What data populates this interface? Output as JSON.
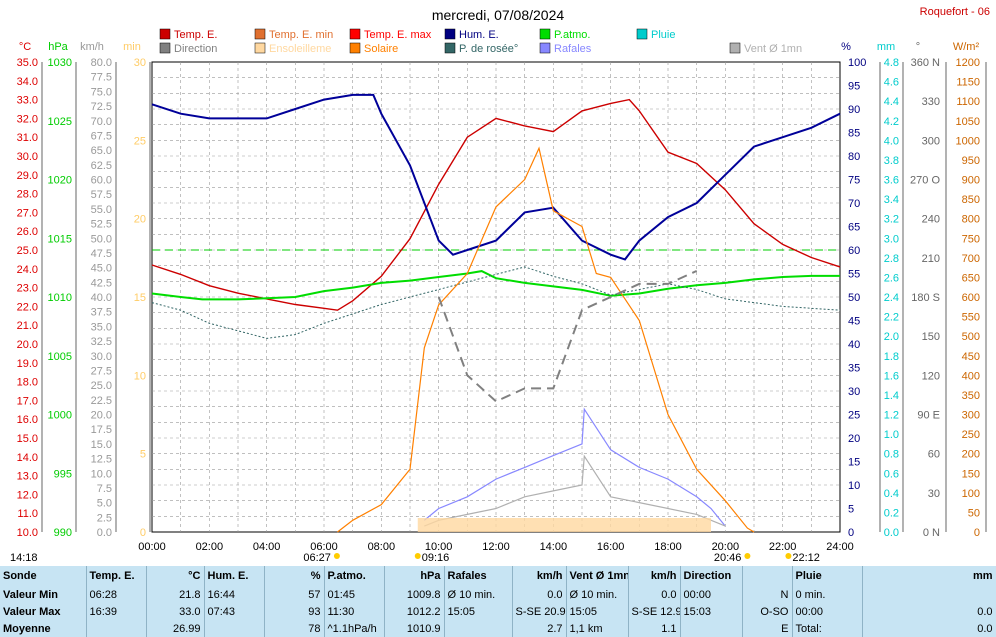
{
  "title": "mercredi, 07/08/2024",
  "station": "Roquefort - 06",
  "legend": [
    {
      "label": "Temp. E.",
      "color": "#cc0000"
    },
    {
      "label": "Direction",
      "color": "#808080"
    },
    {
      "label": "Temp. E. min",
      "color": "#e07030"
    },
    {
      "label": "Ensoleilleme",
      "color": "#ffd8a0"
    },
    {
      "label": "Temp. E. max",
      "color": "#ff0000"
    },
    {
      "label": "Solaire",
      "color": "#ff8000"
    },
    {
      "label": "Hum. E.",
      "color": "#000080"
    },
    {
      "label": "P. de rosée°",
      "color": "#336666"
    },
    {
      "label": "P.atmo.",
      "color": "#00dd00"
    },
    {
      "label": "Rafales",
      "color": "#8888ff"
    },
    {
      "label": "Pluie",
      "color": "#00cccc"
    },
    {
      "label": "Vent Ø 1mn",
      "color": "#b0b0b0"
    }
  ],
  "axis_units": [
    "°C",
    "hPa",
    "km/h",
    "min",
    "%",
    "mm",
    "°",
    "W/m²"
  ],
  "axis_colors": {
    "temp": "#dd0000",
    "hpa": "#00cc00",
    "kmh": "#999999",
    "min": "#ffcc66",
    "pct": "#000080",
    "mm": "#00cccc",
    "deg": "#666666",
    "wm2": "#cc6600"
  },
  "chart_data": {
    "type": "line",
    "x_range": [
      "00:00",
      "24:00"
    ],
    "x_ticks": [
      "00:00",
      "02:00",
      "04:00",
      "06:00",
      "08:00",
      "10:00",
      "12:00",
      "14:00",
      "16:00",
      "18:00",
      "20:00",
      "22:00",
      "24:00"
    ],
    "axes": {
      "temp_c": {
        "ticks": [
          "35.0",
          "34.0",
          "33.0",
          "32.0",
          "31.0",
          "30.0",
          "29.0",
          "28.0",
          "27.0",
          "26.0",
          "25.0",
          "24.0",
          "23.0",
          "22.0",
          "21.0",
          "20.0",
          "19.0",
          "18.0",
          "17.0",
          "16.0",
          "15.0",
          "14.0",
          "13.0",
          "12.0",
          "11.0",
          "10.0"
        ],
        "range": [
          10,
          35
        ]
      },
      "hpa": {
        "ticks": [
          "1030",
          "1025",
          "1020",
          "1015",
          "1010",
          "1005",
          "1000",
          "995",
          "990"
        ],
        "range": [
          990,
          1030
        ]
      },
      "kmh": {
        "ticks": [
          "80.0",
          "77.5",
          "75.0",
          "72.5",
          "70.0",
          "67.5",
          "65.0",
          "62.5",
          "60.0",
          "57.5",
          "55.0",
          "52.5",
          "50.0",
          "47.5",
          "45.0",
          "42.5",
          "40.0",
          "37.5",
          "35.0",
          "32.5",
          "30.0",
          "27.5",
          "25.0",
          "22.5",
          "20.0",
          "17.5",
          "15.0",
          "12.5",
          "10.0",
          "7.5",
          "5.0",
          "2.5",
          "0.0"
        ],
        "range": [
          0,
          80
        ]
      },
      "min": {
        "ticks": [
          "30",
          "25",
          "20",
          "15",
          "10",
          "5",
          "0"
        ],
        "range": [
          0,
          30
        ]
      },
      "pct": {
        "ticks": [
          "100",
          "95",
          "90",
          "85",
          "80",
          "75",
          "70",
          "65",
          "60",
          "55",
          "50",
          "45",
          "40",
          "35",
          "30",
          "25",
          "20",
          "15",
          "10",
          "5",
          "0"
        ],
        "range": [
          0,
          100
        ]
      },
      "mm": {
        "ticks": [
          "4.8",
          "4.6",
          "4.4",
          "4.2",
          "4.0",
          "3.8",
          "3.6",
          "3.4",
          "3.2",
          "3.0",
          "2.8",
          "2.6",
          "2.4",
          "2.2",
          "2.0",
          "1.8",
          "1.6",
          "1.4",
          "1.2",
          "1.0",
          "0.8",
          "0.6",
          "0.4",
          "0.2",
          "0.0"
        ],
        "range": [
          0,
          5
        ]
      },
      "deg": {
        "ticks": [
          "360 N",
          "330",
          "300",
          "270 O",
          "240",
          "210",
          "180 S",
          "150",
          "120",
          "90 E",
          "60",
          "30",
          "0 N"
        ],
        "range": [
          0,
          360
        ]
      },
      "wm2": {
        "ticks": [
          "1200",
          "1150",
          "1100",
          "1050",
          "1000",
          "950",
          "900",
          "850",
          "800",
          "750",
          "700",
          "650",
          "600",
          "550",
          "500",
          "450",
          "400",
          "350",
          "300",
          "250",
          "200",
          "150",
          "100",
          "50",
          "0"
        ],
        "range": [
          0,
          1200
        ]
      }
    },
    "series": [
      {
        "name": "Temp. E.",
        "unit": "°C",
        "points": [
          [
            0,
            24.2
          ],
          [
            1,
            23.7
          ],
          [
            2,
            23.1
          ],
          [
            3,
            22.7
          ],
          [
            4,
            22.4
          ],
          [
            5,
            22.1
          ],
          [
            6,
            21.9
          ],
          [
            6.47,
            21.8
          ],
          [
            7,
            22.3
          ],
          [
            8,
            23.6
          ],
          [
            9,
            25.6
          ],
          [
            10,
            28.5
          ],
          [
            11,
            31.0
          ],
          [
            12,
            32.0
          ],
          [
            13,
            31.6
          ],
          [
            14,
            31.3
          ],
          [
            15,
            32.4
          ],
          [
            16,
            32.8
          ],
          [
            16.65,
            33.0
          ],
          [
            17,
            32.4
          ],
          [
            18,
            30.2
          ],
          [
            19,
            29.6
          ],
          [
            20,
            28.2
          ],
          [
            21,
            26.4
          ],
          [
            22,
            25.3
          ],
          [
            23,
            24.6
          ],
          [
            24,
            24.1
          ]
        ]
      },
      {
        "name": "Hum. E.",
        "unit": "%",
        "points": [
          [
            0,
            91
          ],
          [
            1,
            89
          ],
          [
            2,
            88
          ],
          [
            3,
            88
          ],
          [
            4,
            88
          ],
          [
            5,
            90
          ],
          [
            6,
            92
          ],
          [
            7,
            93
          ],
          [
            7.72,
            93
          ],
          [
            8,
            89
          ],
          [
            9,
            78
          ],
          [
            10,
            62
          ],
          [
            10.5,
            59
          ],
          [
            11,
            60
          ],
          [
            12,
            62
          ],
          [
            13,
            68
          ],
          [
            14,
            69
          ],
          [
            15,
            62
          ],
          [
            16,
            59
          ],
          [
            16.5,
            58
          ],
          [
            17,
            62
          ],
          [
            18,
            67
          ],
          [
            19,
            70
          ],
          [
            20,
            76
          ],
          [
            21,
            82
          ],
          [
            22,
            84
          ],
          [
            23,
            86
          ],
          [
            24,
            89
          ]
        ]
      },
      {
        "name": "P.atmo.",
        "unit": "hPa",
        "points": [
          [
            0,
            1010.3
          ],
          [
            1,
            1010.0
          ],
          [
            1.75,
            1009.8
          ],
          [
            2,
            1009.8
          ],
          [
            3,
            1009.8
          ],
          [
            4,
            1009.9
          ],
          [
            5,
            1010.0
          ],
          [
            6,
            1010.5
          ],
          [
            7,
            1010.8
          ],
          [
            8,
            1011.2
          ],
          [
            9,
            1011.4
          ],
          [
            10,
            1011.7
          ],
          [
            11,
            1012.0
          ],
          [
            11.5,
            1012.2
          ],
          [
            12,
            1011.6
          ],
          [
            13,
            1011.2
          ],
          [
            14,
            1010.9
          ],
          [
            15,
            1010.6
          ],
          [
            16,
            1010.1
          ],
          [
            17,
            1010.3
          ],
          [
            18,
            1010.7
          ],
          [
            19,
            1011.0
          ],
          [
            20,
            1011.2
          ],
          [
            21,
            1011.5
          ],
          [
            22,
            1011.7
          ],
          [
            23,
            1011.8
          ],
          [
            24,
            1011.8
          ]
        ]
      },
      {
        "name": "P. de rosée°",
        "unit": "°C",
        "points": [
          [
            0,
            22.2
          ],
          [
            1,
            21.8
          ],
          [
            2,
            21.1
          ],
          [
            3,
            20.7
          ],
          [
            4,
            20.3
          ],
          [
            5,
            20.5
          ],
          [
            6,
            21.1
          ],
          [
            7,
            21.6
          ],
          [
            8,
            22.1
          ],
          [
            9,
            22.5
          ],
          [
            10,
            22.9
          ],
          [
            11,
            23.3
          ],
          [
            12,
            23.7
          ],
          [
            13,
            24.1
          ],
          [
            14,
            23.6
          ],
          [
            15,
            23.2
          ],
          [
            16,
            22.6
          ],
          [
            17,
            22.9
          ],
          [
            18,
            23.2
          ],
          [
            19,
            22.9
          ],
          [
            20,
            22.4
          ],
          [
            21,
            22.2
          ],
          [
            22,
            22.0
          ],
          [
            23,
            21.9
          ],
          [
            24,
            21.8
          ]
        ]
      },
      {
        "name": "Solaire",
        "unit": "W/m²",
        "points": [
          [
            6.47,
            0
          ],
          [
            7,
            30
          ],
          [
            8,
            70
          ],
          [
            9,
            160
          ],
          [
            9.5,
            470
          ],
          [
            10,
            580
          ],
          [
            11,
            660
          ],
          [
            12,
            830
          ],
          [
            13,
            900
          ],
          [
            13.5,
            980
          ],
          [
            14,
            820
          ],
          [
            15,
            780
          ],
          [
            15.5,
            660
          ],
          [
            16,
            650
          ],
          [
            17,
            540
          ],
          [
            18,
            300
          ],
          [
            19,
            160
          ],
          [
            20,
            80
          ],
          [
            20.77,
            10
          ],
          [
            21,
            0
          ]
        ]
      },
      {
        "name": "Rafales",
        "unit": "km/h",
        "points": [
          [
            9.5,
            2
          ],
          [
            10,
            4
          ],
          [
            11,
            6
          ],
          [
            12,
            9
          ],
          [
            13,
            11
          ],
          [
            14,
            13
          ],
          [
            15,
            15
          ],
          [
            15.08,
            20.9
          ],
          [
            16,
            14
          ],
          [
            17,
            11
          ],
          [
            18,
            9
          ],
          [
            19,
            6
          ],
          [
            19.5,
            4
          ],
          [
            20,
            1
          ]
        ]
      },
      {
        "name": "Vent Ø 1mn",
        "unit": "km/h",
        "points": [
          [
            9.5,
            1
          ],
          [
            10,
            2
          ],
          [
            11,
            3
          ],
          [
            12,
            4
          ],
          [
            13,
            6
          ],
          [
            14,
            7
          ],
          [
            15,
            8
          ],
          [
            15.08,
            12.9
          ],
          [
            16,
            6
          ],
          [
            17,
            5
          ],
          [
            18,
            4
          ],
          [
            19,
            3
          ],
          [
            20,
            1
          ]
        ]
      },
      {
        "name": "Direction",
        "unit": "°",
        "points": [
          [
            10,
            180
          ],
          [
            11,
            120
          ],
          [
            12,
            100
          ],
          [
            13,
            110
          ],
          [
            14,
            110
          ],
          [
            15,
            170
          ],
          [
            16,
            180
          ],
          [
            17,
            190
          ],
          [
            18,
            190
          ],
          [
            19,
            200
          ]
        ]
      }
    ],
    "reference_line": {
      "value": 25.0,
      "axis": "temp_c"
    }
  },
  "markers": {
    "left": "14:18",
    "sunrise": "06:27",
    "start_sun": "09:16",
    "sunset_sun": "20:46",
    "sunset": "22:12"
  },
  "stats": {
    "headers": [
      "Sonde",
      "Temp. E.",
      "°C",
      "Hum. E.",
      "%",
      "P.atmo.",
      "hPa",
      "Rafales",
      "km/h",
      "Vent Ø 1mn",
      "km/h",
      "Direction",
      "",
      "Pluie",
      "mm"
    ],
    "rows": [
      [
        "Valeur Min",
        "06:28",
        "21.8",
        "16:44",
        "57",
        "01:45",
        "1009.8",
        "Ø 10 min.",
        "0.0",
        "Ø 10 min.",
        "0.0",
        "00:00",
        "N",
        "0 min.",
        ""
      ],
      [
        "Valeur Max",
        "16:39",
        "33.0",
        "07:43",
        "93",
        "11:30",
        "1012.2",
        "15:05",
        "S-SE 20.9",
        "15:05",
        "S-SE 12.9",
        "15:03",
        "O-SO",
        "00:00",
        "0.0"
      ],
      [
        "Moyenne",
        "",
        "26.99",
        "",
        "78",
        "^1.1hPa/h",
        "1010.9",
        "",
        "2.7",
        "1,1 km",
        "1.1",
        "",
        "E",
        "Total:",
        "0.0"
      ]
    ]
  }
}
